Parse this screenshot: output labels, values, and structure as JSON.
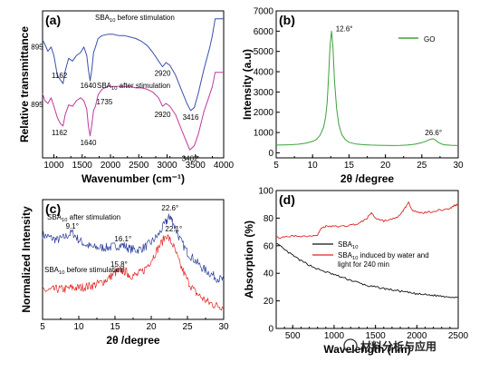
{
  "chart_data": [
    {
      "panel": "(a)",
      "type": "line",
      "xlabel": "Wavenumber (cm⁻¹)",
      "ylabel": "Relative transmittance",
      "xlim": [
        800,
        4000
      ],
      "xticks": [
        1000,
        1500,
        2000,
        2500,
        3000,
        3500,
        4000
      ],
      "yticks": "none",
      "series": [
        {
          "name": "SBA10 before stimulation",
          "color": "#3b4fa6",
          "x": [
            800,
            840,
            895,
            950,
            1000,
            1060,
            1110,
            1162,
            1200,
            1260,
            1330,
            1400,
            1470,
            1530,
            1580,
            1610,
            1640,
            1670,
            1700,
            1735,
            1780,
            1850,
            1950,
            2050,
            2150,
            2250,
            2350,
            2450,
            2550,
            2650,
            2750,
            2850,
            2920,
            2980,
            3050,
            3150,
            3250,
            3350,
            3416,
            3480,
            3550,
            3650,
            3750,
            3800,
            3850,
            3900,
            3950,
            4000
          ],
          "y": [
            0.83,
            0.8,
            0.75,
            0.78,
            0.72,
            0.58,
            0.55,
            0.52,
            0.61,
            0.7,
            0.68,
            0.72,
            0.74,
            0.78,
            0.72,
            0.62,
            0.54,
            0.62,
            0.74,
            0.78,
            0.84,
            0.86,
            0.87,
            0.87,
            0.86,
            0.86,
            0.85,
            0.84,
            0.82,
            0.79,
            0.74,
            0.68,
            0.64,
            0.67,
            0.65,
            0.58,
            0.48,
            0.38,
            0.33,
            0.35,
            0.45,
            0.62,
            0.77,
            0.86,
            0.98,
            0.98,
            0.98,
            0.98
          ]
        },
        {
          "name": "SBA10 after stimulation",
          "color": "#c0399a",
          "x": [
            800,
            840,
            895,
            950,
            1000,
            1060,
            1110,
            1162,
            1200,
            1260,
            1330,
            1400,
            1470,
            1530,
            1580,
            1610,
            1640,
            1670,
            1700,
            1735,
            1780,
            1850,
            1950,
            2050,
            2150,
            2250,
            2350,
            2450,
            2550,
            2650,
            2750,
            2850,
            2920,
            2980,
            3050,
            3150,
            3250,
            3350,
            3402,
            3480,
            3550,
            3650,
            3750,
            3800,
            3850,
            3900,
            3950,
            4000
          ],
          "y": [
            0.45,
            0.4,
            0.38,
            0.42,
            0.36,
            0.28,
            0.24,
            0.22,
            0.3,
            0.37,
            0.36,
            0.4,
            0.42,
            0.4,
            0.34,
            0.22,
            0.15,
            0.23,
            0.33,
            0.36,
            0.44,
            0.48,
            0.5,
            0.5,
            0.5,
            0.5,
            0.5,
            0.49,
            0.49,
            0.48,
            0.46,
            0.42,
            0.36,
            0.38,
            0.36,
            0.3,
            0.2,
            0.1,
            0.05,
            0.08,
            0.16,
            0.32,
            0.44,
            0.5,
            0.6,
            0.6,
            0.6,
            0.6
          ]
        }
      ],
      "annotations": [
        {
          "text": "895",
          "x": 895,
          "y": 0.75
        },
        {
          "text": "1162",
          "x": 1162,
          "y": 0.52
        },
        {
          "text": "1640",
          "x": 1640,
          "y": 0.54
        },
        {
          "text": "2920",
          "x": 2920,
          "y": 0.64
        },
        {
          "text": "3416",
          "x": 3416,
          "y": 0.33
        },
        {
          "text": "895",
          "x": 895,
          "y": 0.38
        },
        {
          "text": "1162",
          "x": 1162,
          "y": 0.22
        },
        {
          "text": "1640",
          "x": 1640,
          "y": 0.15
        },
        {
          "text": "1735",
          "x": 1735,
          "y": 0.36
        },
        {
          "text": "2920",
          "x": 2920,
          "y": 0.36
        },
        {
          "text": "3402",
          "x": 3402,
          "y": 0.05
        }
      ]
    },
    {
      "panel": "(b)",
      "type": "line",
      "xlabel": "2θ /degree",
      "ylabel": "Intensity (a.u)",
      "xlim": [
        5,
        30
      ],
      "ylim": [
        -250,
        7000
      ],
      "xticks": [
        5,
        10,
        15,
        20,
        25,
        30
      ],
      "yticks": [
        0,
        1000,
        2000,
        3000,
        4000,
        5000,
        6000,
        7000
      ],
      "legend": "top-right",
      "series": [
        {
          "name": "GO",
          "color": "#3aa33a",
          "x": [
            5,
            6,
            7,
            8,
            9,
            10,
            10.5,
            11,
            11.5,
            11.8,
            12.0,
            12.2,
            12.4,
            12.6,
            12.8,
            13.0,
            13.3,
            13.6,
            14.0,
            14.5,
            15,
            16,
            17,
            18,
            19,
            20,
            21,
            22,
            23,
            24,
            25,
            25.5,
            26,
            26.3,
            26.6,
            26.9,
            27.3,
            28,
            29,
            30
          ],
          "y": [
            380,
            390,
            400,
            420,
            470,
            560,
            650,
            850,
            1250,
            1800,
            2500,
            3800,
            5300,
            6000,
            5200,
            3600,
            2200,
            1400,
            900,
            650,
            520,
            430,
            400,
            380,
            370,
            365,
            360,
            365,
            380,
            420,
            500,
            560,
            640,
            680,
            690,
            620,
            500,
            400,
            370,
            360
          ]
        }
      ],
      "annotations": [
        {
          "text": "12.6°",
          "x": 12.6,
          "y": 6000
        },
        {
          "text": "26.6°",
          "x": 26.6,
          "y": 690
        }
      ]
    },
    {
      "panel": "(c)",
      "type": "line",
      "xlabel": "2θ /degree",
      "ylabel": "Normalized Intensity",
      "xlim": [
        5,
        30
      ],
      "xticks": [
        5,
        10,
        15,
        20,
        25,
        30
      ],
      "yticks": "none",
      "series": [
        {
          "name": "SBA10 after stimulation",
          "color": "#2e3f9a",
          "x": [
            5,
            6,
            7,
            8,
            9.1,
            10,
            11,
            12,
            13,
            14,
            15,
            16.1,
            17,
            18,
            19,
            20,
            21,
            22,
            22.6,
            23,
            24,
            25,
            26,
            27,
            28,
            29,
            30
          ],
          "y": [
            0.72,
            0.7,
            0.68,
            0.7,
            0.74,
            0.68,
            0.64,
            0.62,
            0.62,
            0.62,
            0.63,
            0.64,
            0.61,
            0.6,
            0.62,
            0.66,
            0.72,
            0.82,
            0.87,
            0.82,
            0.68,
            0.58,
            0.52,
            0.46,
            0.42,
            0.38,
            0.36
          ]
        },
        {
          "name": "SBA10 before stimulation",
          "color": "#e02424",
          "x": [
            5,
            6,
            7,
            8,
            9,
            10,
            11,
            12,
            13,
            14,
            15,
            15.8,
            16.5,
            17,
            18,
            19,
            20,
            21,
            22.1,
            23,
            24,
            25,
            26,
            27,
            28,
            29,
            30
          ],
          "y": [
            0.28,
            0.28,
            0.29,
            0.29,
            0.3,
            0.3,
            0.31,
            0.32,
            0.34,
            0.37,
            0.42,
            0.44,
            0.43,
            0.4,
            0.4,
            0.44,
            0.52,
            0.62,
            0.72,
            0.64,
            0.48,
            0.36,
            0.27,
            0.22,
            0.18,
            0.16,
            0.15
          ]
        }
      ],
      "annotations": [
        {
          "text": "9.1°",
          "x": 9.1,
          "y": 0.74
        },
        {
          "text": "16.1°",
          "x": 16.1,
          "y": 0.64
        },
        {
          "text": "22.6°",
          "x": 22.6,
          "y": 0.87
        },
        {
          "text": "15.8°",
          "x": 15.8,
          "y": 0.44
        },
        {
          "text": "22.1°",
          "x": 22.1,
          "y": 0.72
        }
      ]
    },
    {
      "panel": "(d)",
      "type": "line",
      "xlabel": "Wavelength (nm)",
      "ylabel": "Absorption (%)",
      "xlim": [
        300,
        2500
      ],
      "ylim": [
        0,
        100
      ],
      "xticks": [
        500,
        1000,
        1500,
        2000,
        2500
      ],
      "yticks": [
        0,
        20,
        40,
        60,
        80,
        100
      ],
      "legend": "center-right",
      "series": [
        {
          "name": "SBA10",
          "color": "#111111",
          "x": [
            300,
            400,
            500,
            600,
            700,
            800,
            900,
            1000,
            1100,
            1200,
            1300,
            1400,
            1500,
            1600,
            1700,
            1800,
            1900,
            2000,
            2100,
            2200,
            2300,
            2400,
            2500
          ],
          "y": [
            62,
            57,
            53,
            49,
            46,
            43,
            41,
            39,
            37,
            35,
            33,
            31,
            30,
            29,
            28,
            27,
            26,
            25,
            24.5,
            24,
            23.5,
            23,
            22.5
          ]
        },
        {
          "name": "SBA10 induced by water and light for 240 min",
          "color": "#e02424",
          "x": [
            300,
            400,
            500,
            600,
            700,
            800,
            850,
            900,
            1000,
            1100,
            1200,
            1300,
            1400,
            1450,
            1500,
            1600,
            1700,
            1800,
            1850,
            1900,
            1950,
            2000,
            2100,
            2200,
            2300,
            2400,
            2450,
            2500
          ],
          "y": [
            66,
            66,
            67,
            67,
            67,
            68,
            73,
            74,
            74,
            74,
            75,
            76,
            80,
            84,
            80,
            78,
            79,
            82,
            87,
            91,
            86,
            84,
            84,
            85,
            86,
            87,
            89,
            90
          ]
        }
      ]
    }
  ],
  "watermark": "材料分析与应用"
}
